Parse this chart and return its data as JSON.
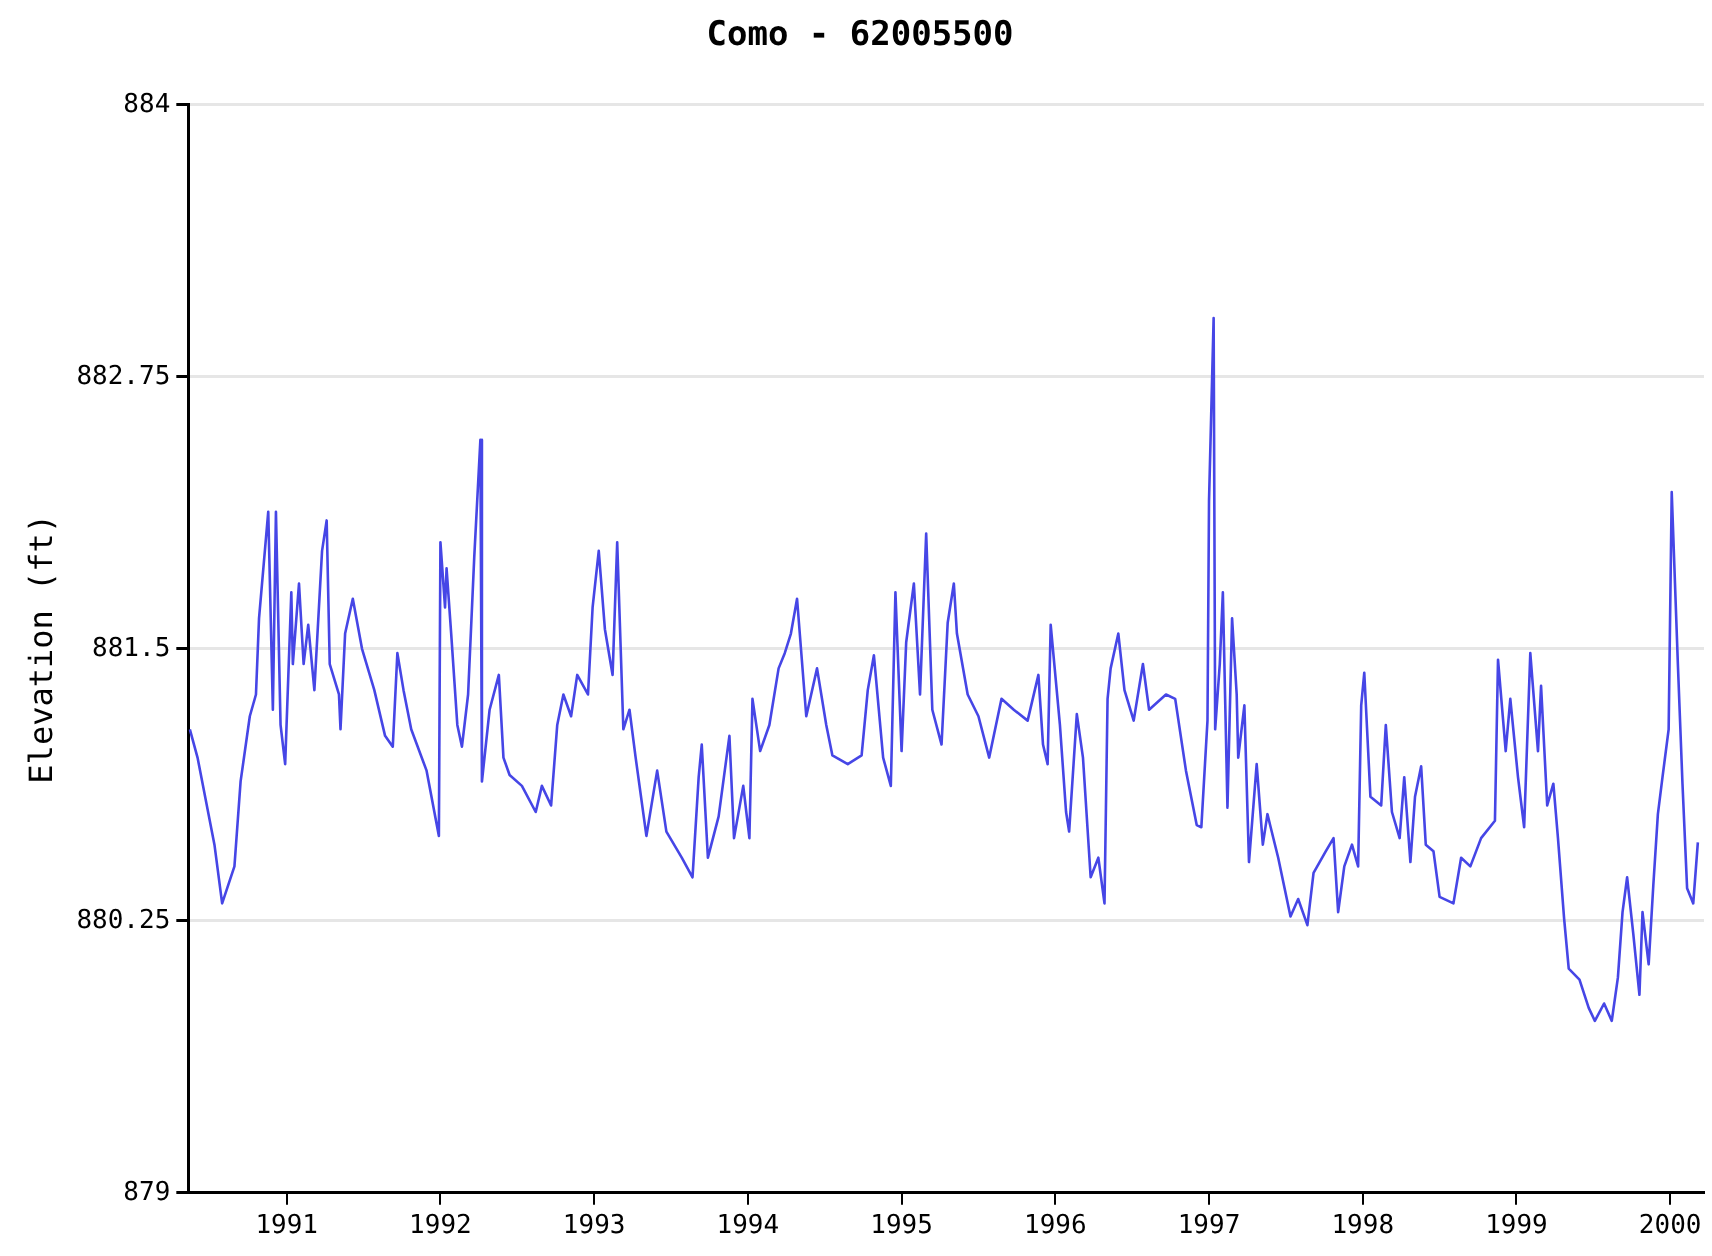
{
  "chart_data": {
    "type": "line",
    "title": "Como - 62005500",
    "ylabel": "Elevation (ft)",
    "color": "#4646e6",
    "marker": "none",
    "grid": "y",
    "xlim": [
      1990.36,
      2000.22
    ],
    "xticks": [
      1991,
      1992,
      1993,
      1994,
      1995,
      1996,
      1997,
      1998,
      1999,
      2000
    ],
    "ylim": [
      879,
      884
    ],
    "yticks": [
      879,
      880.25,
      881.5,
      882.75,
      884
    ],
    "x": [
      1990.37,
      1990.42,
      1990.53,
      1990.58,
      1990.66,
      1990.7,
      1990.76,
      1990.8,
      1990.82,
      1990.88,
      1990.91,
      1990.93,
      1990.96,
      1990.99,
      1991.03,
      1991.04,
      1991.08,
      1991.11,
      1991.14,
      1991.18,
      1991.23,
      1991.26,
      1991.28,
      1991.34,
      1991.35,
      1991.38,
      1991.43,
      1991.49,
      1991.57,
      1991.64,
      1991.69,
      1991.72,
      1991.76,
      1991.81,
      1991.91,
      1991.99,
      1992.0,
      1992.03,
      1992.04,
      1992.07,
      1992.11,
      1992.14,
      1992.18,
      1992.22,
      1992.26,
      1992.27,
      1992.32,
      1992.38,
      1992.41,
      1992.45,
      1992.53,
      1992.62,
      1992.66,
      1992.72,
      1992.76,
      1992.8,
      1992.85,
      1992.89,
      1992.96,
      1992.99,
      1993.03,
      1993.07,
      1993.12,
      1993.15,
      1993.19,
      1993.23,
      1993.27,
      1993.34,
      1993.41,
      1993.47,
      1993.57,
      1993.64,
      1993.68,
      1993.7,
      1993.74,
      1993.81,
      1993.88,
      1993.91,
      1993.97,
      1994.01,
      1994.03,
      1994.08,
      1994.14,
      1994.2,
      1994.24,
      1994.28,
      1994.32,
      1994.38,
      1994.45,
      1994.51,
      1994.55,
      1994.65,
      1994.74,
      1994.78,
      1994.82,
      1994.88,
      1994.93,
      1994.96,
      1995.0,
      1995.03,
      1995.08,
      1995.12,
      1995.16,
      1995.2,
      1995.26,
      1995.3,
      1995.34,
      1995.36,
      1995.43,
      1995.5,
      1995.57,
      1995.65,
      1995.73,
      1995.82,
      1995.89,
      1995.92,
      1995.95,
      1995.97,
      1996.03,
      1996.07,
      1996.09,
      1996.14,
      1996.18,
      1996.23,
      1996.28,
      1996.32,
      1996.34,
      1996.36,
      1996.41,
      1996.45,
      1996.51,
      1996.57,
      1996.61,
      1996.72,
      1996.78,
      1996.85,
      1996.92,
      1996.95,
      1996.99,
      1997.0,
      1997.03,
      1997.04,
      1997.07,
      1997.09,
      1997.12,
      1997.15,
      1997.18,
      1997.19,
      1997.23,
      1997.26,
      1997.31,
      1997.35,
      1997.38,
      1997.45,
      1997.53,
      1997.58,
      1997.64,
      1997.68,
      1997.76,
      1997.81,
      1997.84,
      1997.88,
      1997.93,
      1997.97,
      1997.99,
      1998.01,
      1998.05,
      1998.12,
      1998.15,
      1998.19,
      1998.24,
      1998.27,
      1998.31,
      1998.34,
      1998.38,
      1998.41,
      1998.46,
      1998.5,
      1998.59,
      1998.64,
      1998.7,
      1998.77,
      1998.86,
      1998.88,
      1998.93,
      1998.96,
      1999.01,
      1999.05,
      1999.09,
      1999.14,
      1999.16,
      1999.2,
      1999.24,
      1999.27,
      1999.31,
      1999.34,
      1999.41,
      1999.47,
      1999.51,
      1999.57,
      1999.62,
      1999.66,
      1999.69,
      1999.72,
      1999.76,
      1999.8,
      1999.82,
      1999.86,
      1999.89,
      1999.92,
      1999.95,
      1999.99,
      2000.01,
      2000.05,
      2000.08,
      2000.11,
      2000.15,
      2000.18
    ],
    "values": [
      881.13,
      881.0,
      880.6,
      880.33,
      880.5,
      880.89,
      881.19,
      881.29,
      881.64,
      882.13,
      881.22,
      882.13,
      881.15,
      880.97,
      881.76,
      881.43,
      881.8,
      881.43,
      881.61,
      881.31,
      881.95,
      882.09,
      881.43,
      881.29,
      881.13,
      881.57,
      881.73,
      881.5,
      881.31,
      881.1,
      881.05,
      881.48,
      881.31,
      881.13,
      880.94,
      880.64,
      881.99,
      881.69,
      881.87,
      881.57,
      881.15,
      881.05,
      881.29,
      881.92,
      882.46,
      880.89,
      881.22,
      881.38,
      881.0,
      880.92,
      880.87,
      880.75,
      880.87,
      880.78,
      881.15,
      881.29,
      881.19,
      881.38,
      881.29,
      881.69,
      881.95,
      881.59,
      881.38,
      881.99,
      881.13,
      881.22,
      881.0,
      880.64,
      880.94,
      880.66,
      880.54,
      880.45,
      880.91,
      881.06,
      880.54,
      880.73,
      881.1,
      880.63,
      880.87,
      880.63,
      881.27,
      881.03,
      881.15,
      881.41,
      881.48,
      881.57,
      881.73,
      881.19,
      881.41,
      881.15,
      881.01,
      880.97,
      881.01,
      881.31,
      881.47,
      881.0,
      880.87,
      881.76,
      881.03,
      881.53,
      881.8,
      881.29,
      882.03,
      881.22,
      881.06,
      881.62,
      881.8,
      881.57,
      881.29,
      881.19,
      881.0,
      881.27,
      881.22,
      881.17,
      881.38,
      881.06,
      880.97,
      881.61,
      881.15,
      880.75,
      880.66,
      881.2,
      881.0,
      880.45,
      880.54,
      880.33,
      881.27,
      881.41,
      881.57,
      881.31,
      881.17,
      881.43,
      881.22,
      881.29,
      881.27,
      880.94,
      880.69,
      880.68,
      881.17,
      882.18,
      883.02,
      881.13,
      881.43,
      881.76,
      880.77,
      881.64,
      881.29,
      881.0,
      881.24,
      880.52,
      880.97,
      880.6,
      880.74,
      880.54,
      880.27,
      880.35,
      880.23,
      880.47,
      880.57,
      880.63,
      880.29,
      880.5,
      880.6,
      880.5,
      881.24,
      881.39,
      880.82,
      880.78,
      881.15,
      880.75,
      880.63,
      880.91,
      880.52,
      880.82,
      880.96,
      880.6,
      880.57,
      880.36,
      880.33,
      880.54,
      880.5,
      880.63,
      880.71,
      881.45,
      881.03,
      881.27,
      880.91,
      880.68,
      881.48,
      881.03,
      881.33,
      880.78,
      880.88,
      880.63,
      880.26,
      880.03,
      879.98,
      879.85,
      879.79,
      879.87,
      879.79,
      879.99,
      880.29,
      880.45,
      880.19,
      879.91,
      880.29,
      880.05,
      880.41,
      880.74,
      880.91,
      881.13,
      882.22,
      881.43,
      880.88,
      880.4,
      880.33,
      880.61
    ]
  }
}
